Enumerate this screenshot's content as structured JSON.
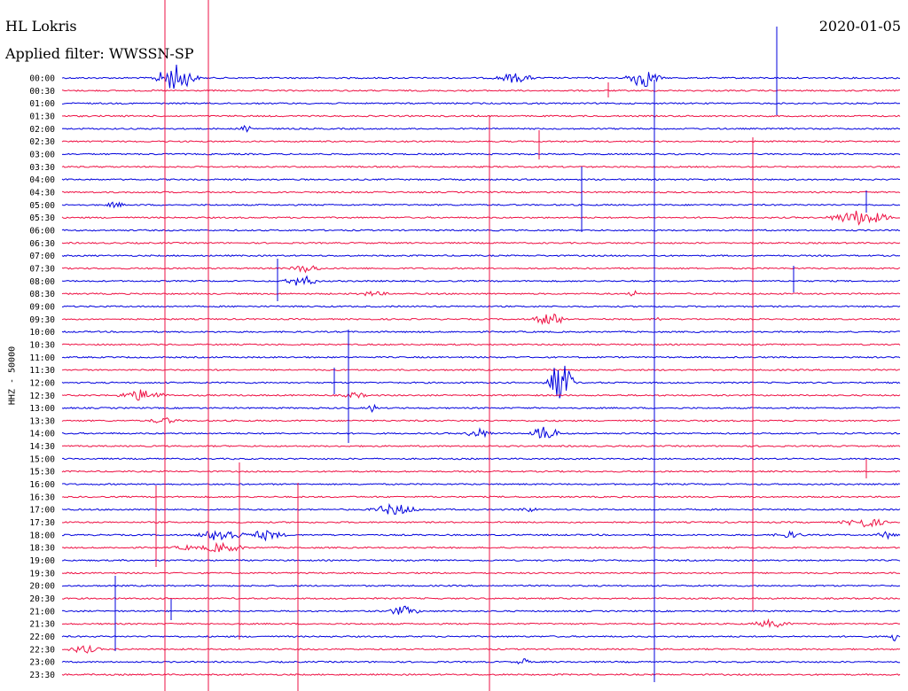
{
  "header": {
    "station": "HL Lokris",
    "filter": "Applied filter: WWSSN-SP",
    "date": "2020-01-05"
  },
  "axis": {
    "ylabel": "HHZ - 50000"
  },
  "colors": {
    "blue": "#0000dd",
    "red": "#ee1144",
    "background": "#ffffff",
    "text": "#000000"
  },
  "traces": {
    "times": [
      "00:00",
      "00:30",
      "01:00",
      "01:30",
      "02:00",
      "02:30",
      "03:00",
      "03:30",
      "04:00",
      "04:30",
      "05:00",
      "05:30",
      "06:00",
      "06:30",
      "07:00",
      "07:30",
      "08:00",
      "08:30",
      "09:00",
      "09:30",
      "10:00",
      "10:30",
      "11:00",
      "11:30",
      "12:00",
      "12:30",
      "13:00",
      "13:30",
      "14:00",
      "14:30",
      "15:00",
      "15:30",
      "16:00",
      "16:30",
      "17:00",
      "17:30",
      "18:00",
      "18:30",
      "19:00",
      "19:30",
      "20:00",
      "20:30",
      "21:00",
      "21:30",
      "22:00",
      "22:30",
      "23:00",
      "23:30"
    ]
  }
}
